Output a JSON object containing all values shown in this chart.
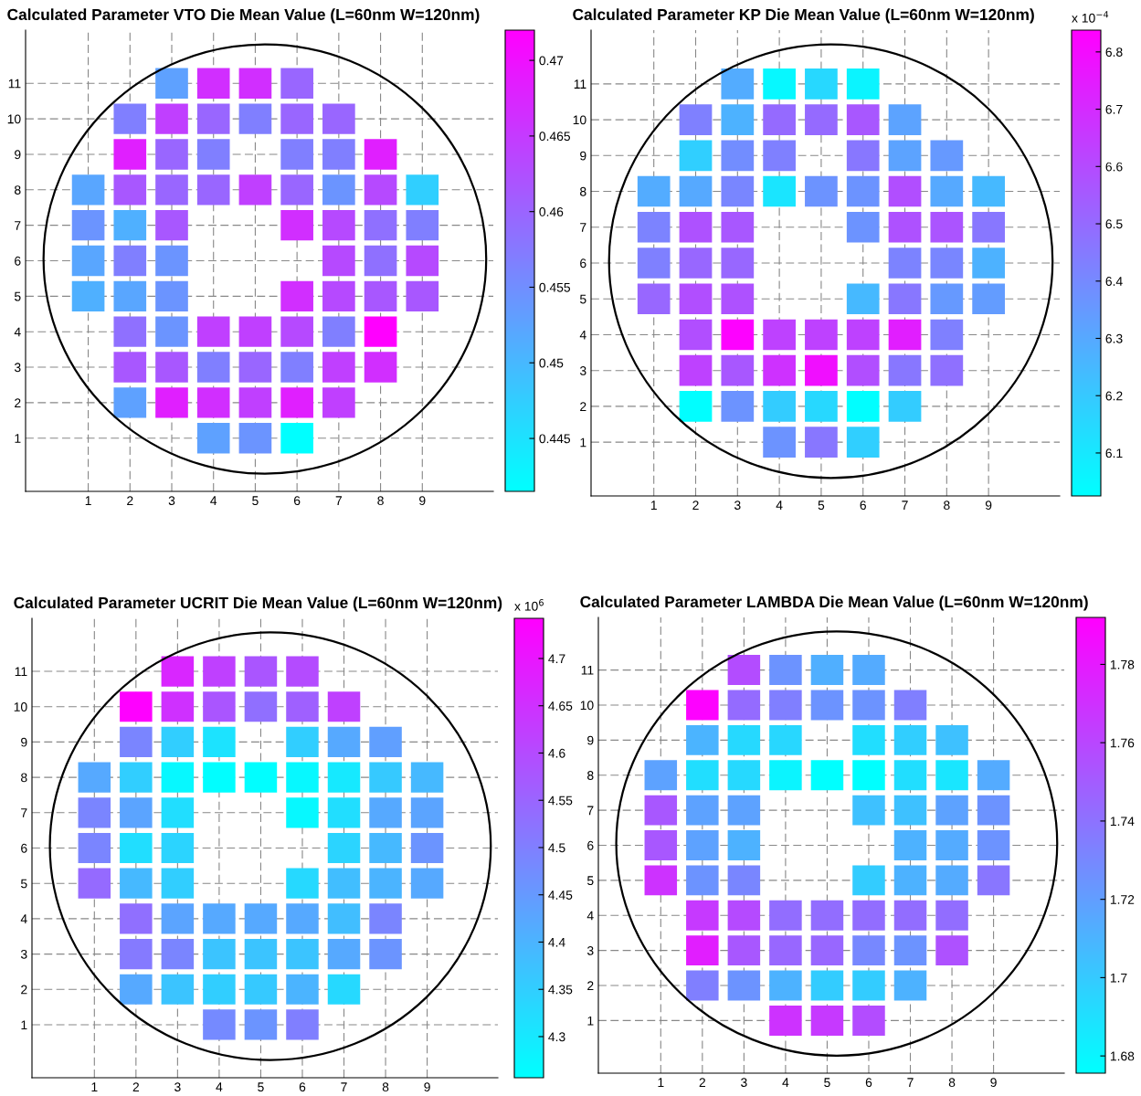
{
  "chart_data": [
    {
      "type": "heatmap",
      "title": "Calculated Parameter VTO Die Mean Value (L=60nm W=120nm)",
      "grid": true,
      "categories": [
        "1",
        "2",
        "3",
        "4",
        "5",
        "6",
        "7",
        "8",
        "9"
      ],
      "y_categories": [
        "11",
        "10",
        "9",
        "8",
        "7",
        "6",
        "5",
        "4",
        "3",
        "2",
        "1"
      ],
      "cells": [
        [
          null,
          null,
          0.4528,
          0.4665,
          0.4665,
          0.4598,
          null,
          null,
          null
        ],
        [
          null,
          0.4568,
          0.4644,
          0.4598,
          0.4568,
          0.4598,
          0.4598,
          null,
          null
        ],
        [
          null,
          0.4683,
          0.4598,
          0.4568,
          null,
          0.4568,
          0.4568,
          0.4683,
          null
        ],
        [
          0.4522,
          0.4616,
          0.4598,
          0.4598,
          0.4644,
          0.4598,
          0.4543,
          0.4632,
          0.4473
        ],
        [
          0.4543,
          0.451,
          0.4616,
          null,
          null,
          0.4665,
          0.4632,
          0.4586,
          0.4568
        ],
        [
          0.4522,
          0.4568,
          0.4543,
          null,
          null,
          null,
          0.4632,
          0.4586,
          0.4632
        ],
        [
          0.451,
          0.4522,
          0.4543,
          null,
          null,
          0.4665,
          0.4632,
          0.4616,
          0.4616
        ],
        [
          null,
          0.4586,
          0.4543,
          0.4644,
          0.4644,
          0.4632,
          0.4568,
          0.472,
          null
        ],
        [
          null,
          0.4616,
          0.4616,
          0.4568,
          0.4598,
          0.4568,
          0.4644,
          0.4665,
          null
        ],
        [
          null,
          0.4528,
          0.4683,
          0.4665,
          0.4644,
          0.4683,
          0.4644,
          null,
          null
        ],
        [
          null,
          null,
          null,
          0.4528,
          0.4543,
          0.4415,
          null,
          null,
          null
        ]
      ],
      "clim": [
        0.4415,
        0.472
      ],
      "cticks": [
        0.445,
        0.45,
        0.455,
        0.46,
        0.465,
        0.47
      ]
    },
    {
      "type": "heatmap",
      "title": "Calculated Parameter KP Die Mean Value (L=60nm W=120nm)",
      "grid": true,
      "categories": [
        "1",
        "2",
        "3",
        "4",
        "5",
        "6",
        "7",
        "8",
        "9"
      ],
      "y_categories": [
        "11",
        "10",
        "9",
        "8",
        "7",
        "6",
        "5",
        "4",
        "3",
        "2",
        "1"
      ],
      "cells": [
        [
          null,
          null,
          6.29,
          6.05,
          6.15,
          6.06,
          null,
          null,
          null
        ],
        [
          null,
          6.43,
          6.27,
          6.5,
          6.5,
          6.56,
          6.32,
          null,
          null
        ],
        [
          null,
          6.18,
          6.39,
          6.43,
          null,
          6.46,
          6.32,
          6.35,
          null
        ],
        [
          6.29,
          6.3,
          6.41,
          6.11,
          6.37,
          6.37,
          6.59,
          6.3,
          6.25
        ],
        [
          6.42,
          6.58,
          6.56,
          null,
          null,
          6.37,
          6.58,
          6.57,
          6.46
        ],
        [
          6.43,
          6.51,
          6.51,
          null,
          null,
          null,
          6.42,
          6.41,
          6.27
        ],
        [
          6.51,
          6.59,
          6.58,
          null,
          null,
          6.25,
          6.46,
          6.35,
          6.34
        ],
        [
          null,
          6.59,
          6.83,
          6.63,
          6.63,
          6.63,
          6.74,
          6.43,
          null
        ],
        [
          null,
          6.63,
          6.56,
          6.68,
          6.79,
          6.59,
          6.46,
          6.48,
          null
        ],
        [
          null,
          6.03,
          6.37,
          6.19,
          6.15,
          6.03,
          6.19,
          null,
          null
        ],
        [
          null,
          null,
          null,
          6.37,
          6.46,
          6.18,
          null,
          null,
          null
        ]
      ],
      "clim": [
        6.025,
        6.838
      ],
      "cticks": [
        6.1,
        6.2,
        6.3,
        6.4,
        6.5,
        6.6,
        6.7,
        6.8
      ],
      "clabel": "x 10$^{−4}$"
    },
    {
      "type": "heatmap",
      "title": "Calculated Parameter UCRIT Die Mean Value (L=60nm W=120nm)",
      "grid": true,
      "categories": [
        "1",
        "2",
        "3",
        "4",
        "5",
        "6",
        "7",
        "8",
        "9"
      ],
      "y_categories": [
        "11",
        "10",
        "9",
        "8",
        "7",
        "6",
        "5",
        "4",
        "3",
        "2",
        "1"
      ],
      "cells": [
        [
          null,
          null,
          4.67,
          4.62,
          4.58,
          4.6,
          null,
          null,
          null
        ],
        [
          null,
          4.74,
          4.65,
          4.58,
          4.53,
          4.56,
          4.62,
          null,
          null
        ],
        [
          null,
          4.49,
          4.35,
          4.31,
          null,
          4.35,
          4.42,
          4.44,
          null
        ],
        [
          4.42,
          4.35,
          4.27,
          4.26,
          4.26,
          4.27,
          4.3,
          4.36,
          4.39
        ],
        [
          4.49,
          4.43,
          4.32,
          null,
          null,
          4.27,
          4.32,
          4.42,
          4.43
        ],
        [
          4.49,
          4.32,
          4.34,
          null,
          null,
          null,
          4.34,
          4.39,
          4.46
        ],
        [
          4.54,
          4.39,
          4.35,
          null,
          null,
          4.33,
          4.38,
          4.4,
          4.42
        ],
        [
          null,
          4.53,
          4.43,
          4.42,
          4.42,
          4.42,
          4.38,
          4.49,
          null
        ],
        [
          null,
          4.51,
          4.49,
          4.37,
          4.37,
          4.37,
          4.42,
          4.46,
          null
        ],
        [
          null,
          4.42,
          4.37,
          4.35,
          4.36,
          4.4,
          4.33,
          null,
          null
        ],
        [
          null,
          null,
          null,
          4.48,
          4.46,
          4.5,
          null,
          null,
          null
        ]
      ],
      "clim": [
        4.2565,
        4.7425
      ],
      "cticks": [
        4.3,
        4.35,
        4.4,
        4.45,
        4.5,
        4.55,
        4.6,
        4.65,
        4.7
      ],
      "clabel": "x 10$^{6}$"
    },
    {
      "type": "heatmap",
      "title": "Calculated Parameter LAMBDA Die Mean Value (L=60nm W=120nm)",
      "grid": true,
      "categories": [
        "1",
        "2",
        "3",
        "4",
        "5",
        "6",
        "7",
        "8",
        "9"
      ],
      "y_categories": [
        "11",
        "10",
        "9",
        "8",
        "7",
        "6",
        "5",
        "4",
        "3",
        "2",
        "1"
      ],
      "cells": [
        [
          null,
          null,
          1.757,
          1.725,
          1.712,
          1.714,
          null,
          null,
          null
        ],
        [
          null,
          1.791,
          1.743,
          1.734,
          1.725,
          1.725,
          1.734,
          null,
          null
        ],
        [
          null,
          1.71,
          1.693,
          1.694,
          null,
          1.691,
          1.698,
          1.704,
          null
        ],
        [
          1.718,
          1.691,
          1.693,
          1.681,
          1.676,
          1.676,
          1.691,
          1.687,
          1.714
        ],
        [
          1.752,
          1.718,
          1.718,
          null,
          null,
          1.704,
          1.704,
          1.718,
          1.725
        ],
        [
          1.752,
          1.718,
          1.711,
          null,
          null,
          null,
          1.711,
          1.714,
          1.725
        ],
        [
          1.769,
          1.725,
          1.731,
          null,
          null,
          1.699,
          1.711,
          1.714,
          1.738
        ],
        [
          null,
          1.766,
          1.758,
          1.742,
          1.742,
          1.742,
          1.742,
          1.742,
          null
        ],
        [
          null,
          1.778,
          1.752,
          1.745,
          1.745,
          1.73,
          1.725,
          1.755,
          null
        ],
        [
          null,
          1.734,
          1.725,
          1.711,
          1.699,
          1.699,
          1.711,
          null,
          null
        ],
        [
          null,
          null,
          null,
          1.769,
          1.766,
          1.757,
          null,
          null,
          null
        ]
      ],
      "clim": [
        1.6756,
        1.792
      ],
      "cticks": [
        1.68,
        1.7,
        1.72,
        1.74,
        1.76,
        1.78
      ]
    }
  ]
}
